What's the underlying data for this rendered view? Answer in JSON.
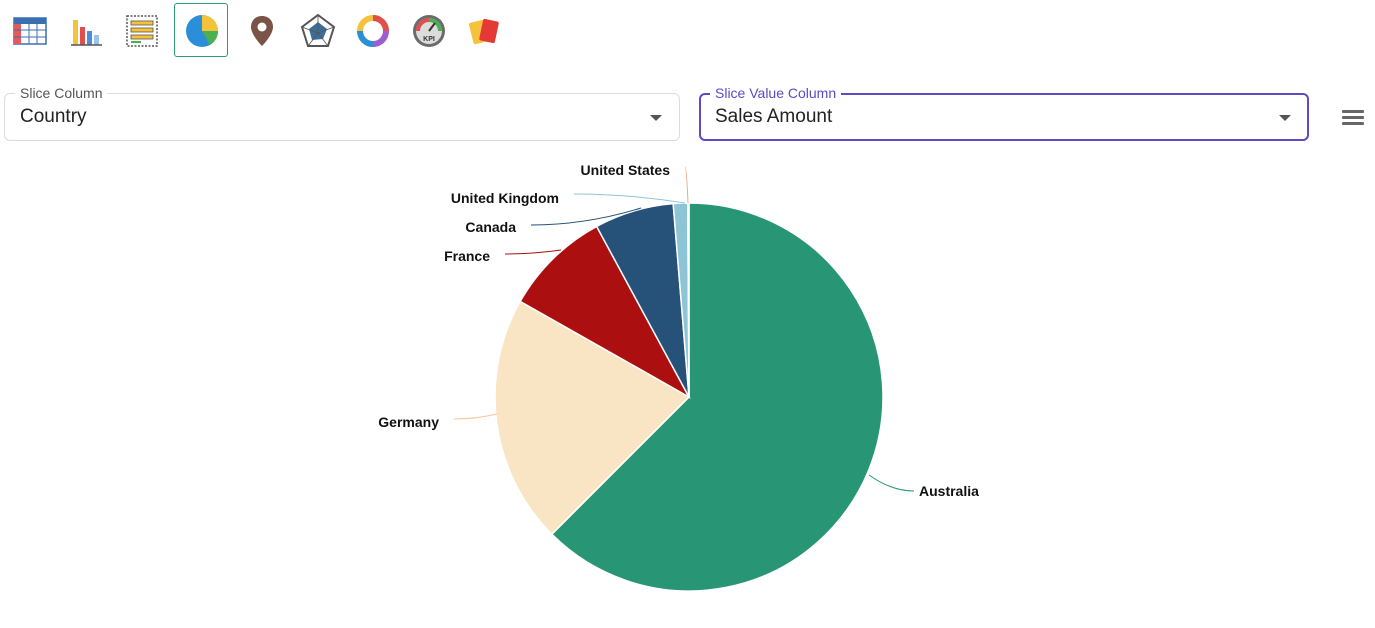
{
  "toolbar": {
    "items": [
      {
        "name": "table-view-icon",
        "active": false
      },
      {
        "name": "bar-chart-icon",
        "active": false
      },
      {
        "name": "pivot-list-icon",
        "active": false
      },
      {
        "name": "pie-chart-icon",
        "active": true
      },
      {
        "name": "map-pin-icon",
        "active": false
      },
      {
        "name": "radar-chart-icon",
        "active": false
      },
      {
        "name": "donut-chart-icon",
        "active": false
      },
      {
        "name": "kpi-gauge-icon",
        "active": false
      },
      {
        "name": "cards-icon",
        "active": false
      }
    ],
    "kpi_text": "KPI"
  },
  "slice_column": {
    "label": "Slice Column",
    "value": "Country"
  },
  "slice_value_column": {
    "label": "Slice Value Column",
    "value": "Sales Amount"
  },
  "menu": {
    "icon": "hamburger-menu-icon"
  },
  "chart_data": {
    "type": "pie",
    "title": "",
    "slices": [
      {
        "label": "Australia",
        "value": 62.5,
        "color": "#289674"
      },
      {
        "label": "Germany",
        "value": 20.7,
        "color": "#f9e4c3"
      },
      {
        "label": "France",
        "value": 8.9,
        "color": "#ab0f0f"
      },
      {
        "label": "Canada",
        "value": 6.6,
        "color": "#265179"
      },
      {
        "label": "United Kingdom",
        "value": 1.2,
        "color": "#8ec5d6"
      },
      {
        "label": "United States",
        "value": 0.1,
        "color": "#f4a582"
      }
    ]
  }
}
